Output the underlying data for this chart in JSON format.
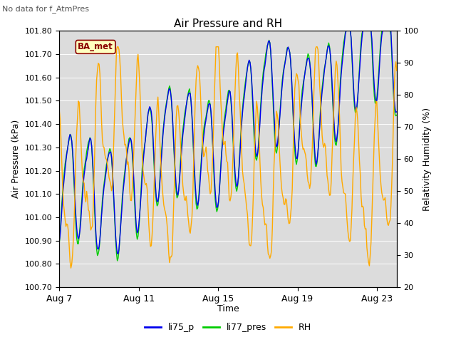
{
  "title": "Air Pressure and RH",
  "no_data_text": "No data for f_AtmPres",
  "station_label": "BA_met",
  "xlabel": "Time",
  "ylabel_left": "Air Pressure (kPa)",
  "ylabel_right": "Relativity Humidity (%)",
  "ylim_left": [
    100.7,
    101.8
  ],
  "ylim_right": [
    20,
    100
  ],
  "yticks_left": [
    100.7,
    100.8,
    100.9,
    101.0,
    101.1,
    101.2,
    101.3,
    101.4,
    101.5,
    101.6,
    101.7,
    101.8
  ],
  "yticks_right": [
    20,
    30,
    40,
    50,
    60,
    70,
    80,
    90,
    100
  ],
  "xtick_labels": [
    "Aug 7",
    "Aug 11",
    "Aug 15",
    "Aug 19",
    "Aug 23"
  ],
  "xtick_positions": [
    0,
    4,
    8,
    12,
    16
  ],
  "color_li75": "#0000ee",
  "color_li77": "#00cc00",
  "color_rh": "#ffaa00",
  "plot_bg": "#dcdcdc",
  "legend_entries": [
    "li75_p",
    "li77_pres",
    "RH"
  ]
}
